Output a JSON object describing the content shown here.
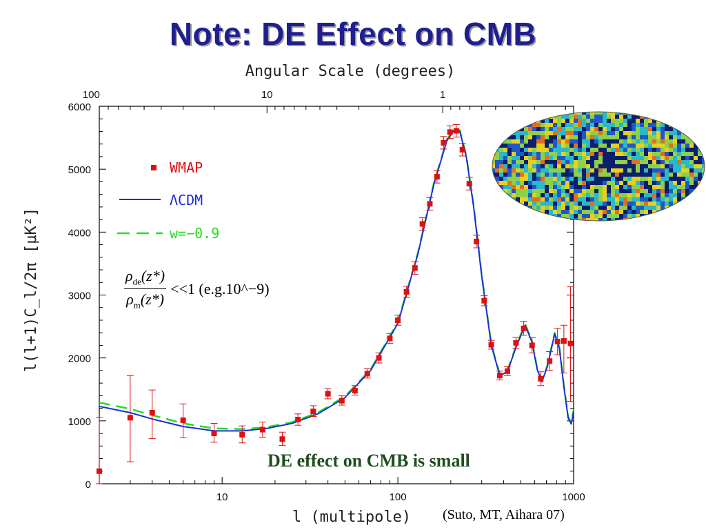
{
  "slide": {
    "title": "Note: DE Effect on CMB",
    "formula": {
      "num_rho": "ρ",
      "num_sub": "de",
      "num_arg": "(z*)",
      "den_rho": "ρ",
      "den_sub": "m",
      "den_arg": "(z*)",
      "relation": "<<1 (e.g.10^−9)"
    },
    "callout": "DE effect on CMB is small",
    "citation": "(Suto, MT, Aihara 07)"
  },
  "chart_data": {
    "type": "scatter",
    "xlabel": "l (multipole)",
    "ylabel": "l(l+1)C_l/2π [μK²]",
    "top_axis_label": "Angular Scale (degrees)",
    "xscale": "log",
    "xlim": [
      2,
      1000
    ],
    "ylim": [
      0,
      6000
    ],
    "x_ticks": [
      "10",
      "100",
      "1000"
    ],
    "y_ticks": [
      "0",
      "1000",
      "2000",
      "3000",
      "4000",
      "5000",
      "6000"
    ],
    "top_ticks": [
      "100",
      "10",
      "1"
    ],
    "legend": {
      "placement": "upper-left",
      "entries": [
        "WMAP",
        "ΛCDM",
        "w=−0.9"
      ]
    },
    "colors": {
      "wmap": "#dd1111",
      "lcdm": "#1a2fd6",
      "w09": "#22dd22",
      "frame": "#000000"
    },
    "series": [
      {
        "name": "WMAP",
        "points": [
          {
            "l": 2,
            "v": 200,
            "lo": 0,
            "hi": 1050
          },
          {
            "l": 3,
            "v": 1050,
            "lo": 350,
            "hi": 1720
          },
          {
            "l": 4,
            "v": 1130,
            "lo": 720,
            "hi": 1490
          },
          {
            "l": 6,
            "v": 1010,
            "lo": 730,
            "hi": 1270
          },
          {
            "l": 9,
            "v": 800,
            "lo": 660,
            "hi": 960
          },
          {
            "l": 13,
            "v": 780,
            "lo": 650,
            "hi": 920
          },
          {
            "l": 17,
            "v": 860,
            "lo": 740,
            "hi": 980
          },
          {
            "l": 22,
            "v": 710,
            "lo": 610,
            "hi": 820
          },
          {
            "l": 27,
            "v": 1020,
            "lo": 930,
            "hi": 1110
          },
          {
            "l": 33,
            "v": 1150,
            "lo": 1070,
            "hi": 1240
          },
          {
            "l": 40,
            "v": 1430,
            "lo": 1350,
            "hi": 1510
          },
          {
            "l": 48,
            "v": 1320,
            "lo": 1250,
            "hi": 1400
          },
          {
            "l": 57,
            "v": 1480,
            "lo": 1410,
            "hi": 1560
          },
          {
            "l": 67,
            "v": 1750,
            "lo": 1680,
            "hi": 1830
          },
          {
            "l": 78,
            "v": 2000,
            "lo": 1920,
            "hi": 2080
          },
          {
            "l": 90,
            "v": 2310,
            "lo": 2230,
            "hi": 2390
          },
          {
            "l": 100,
            "v": 2600,
            "lo": 2520,
            "hi": 2680
          },
          {
            "l": 112,
            "v": 3050,
            "lo": 2960,
            "hi": 3140
          },
          {
            "l": 125,
            "v": 3430,
            "lo": 3330,
            "hi": 3530
          },
          {
            "l": 138,
            "v": 4130,
            "lo": 4030,
            "hi": 4230
          },
          {
            "l": 152,
            "v": 4450,
            "lo": 4350,
            "hi": 4550
          },
          {
            "l": 167,
            "v": 4880,
            "lo": 4780,
            "hi": 4980
          },
          {
            "l": 182,
            "v": 5420,
            "lo": 5320,
            "hi": 5520
          },
          {
            "l": 198,
            "v": 5590,
            "lo": 5490,
            "hi": 5690
          },
          {
            "l": 215,
            "v": 5610,
            "lo": 5510,
            "hi": 5710
          },
          {
            "l": 233,
            "v": 5310,
            "lo": 5210,
            "hi": 5410
          },
          {
            "l": 255,
            "v": 4770,
            "lo": 4670,
            "hi": 4870
          },
          {
            "l": 280,
            "v": 3850,
            "lo": 3750,
            "hi": 3950
          },
          {
            "l": 310,
            "v": 2910,
            "lo": 2830,
            "hi": 2990
          },
          {
            "l": 340,
            "v": 2210,
            "lo": 2140,
            "hi": 2280
          },
          {
            "l": 380,
            "v": 1720,
            "lo": 1650,
            "hi": 1790
          },
          {
            "l": 420,
            "v": 1790,
            "lo": 1720,
            "hi": 1860
          },
          {
            "l": 470,
            "v": 2240,
            "lo": 2150,
            "hi": 2330
          },
          {
            "l": 520,
            "v": 2470,
            "lo": 2360,
            "hi": 2580
          },
          {
            "l": 580,
            "v": 2200,
            "lo": 2080,
            "hi": 2320
          },
          {
            "l": 650,
            "v": 1670,
            "lo": 1560,
            "hi": 1780
          },
          {
            "l": 730,
            "v": 1950,
            "lo": 1800,
            "hi": 2100
          },
          {
            "l": 810,
            "v": 2260,
            "lo": 2050,
            "hi": 2470
          },
          {
            "l": 880,
            "v": 2270,
            "lo": 1760,
            "hi": 2520
          },
          {
            "l": 960,
            "v": 2230,
            "lo": 1310,
            "hi": 3130
          }
        ]
      },
      {
        "name": "ΛCDM",
        "curve": [
          [
            2,
            1230
          ],
          [
            3,
            1130
          ],
          [
            4,
            1030
          ],
          [
            6,
            910
          ],
          [
            9,
            840
          ],
          [
            13,
            840
          ],
          [
            18,
            880
          ],
          [
            25,
            960
          ],
          [
            35,
            1110
          ],
          [
            50,
            1370
          ],
          [
            70,
            1800
          ],
          [
            100,
            2550
          ],
          [
            130,
            3650
          ],
          [
            160,
            4750
          ],
          [
            190,
            5450
          ],
          [
            210,
            5630
          ],
          [
            225,
            5600
          ],
          [
            245,
            5200
          ],
          [
            270,
            4400
          ],
          [
            300,
            3300
          ],
          [
            340,
            2200
          ],
          [
            380,
            1720
          ],
          [
            420,
            1780
          ],
          [
            470,
            2170
          ],
          [
            530,
            2520
          ],
          [
            580,
            2250
          ],
          [
            620,
            1820
          ],
          [
            660,
            1620
          ],
          [
            710,
            1870
          ],
          [
            780,
            2380
          ],
          [
            830,
            2150
          ],
          [
            880,
            1550
          ],
          [
            930,
            1050
          ],
          [
            970,
            950
          ],
          [
            1000,
            1150
          ]
        ]
      },
      {
        "name": "w=−0.9",
        "curve": [
          [
            2,
            1290
          ],
          [
            3,
            1190
          ],
          [
            4,
            1090
          ],
          [
            6,
            960
          ],
          [
            9,
            880
          ],
          [
            13,
            870
          ],
          [
            18,
            900
          ],
          [
            25,
            980
          ],
          [
            35,
            1130
          ],
          [
            50,
            1390
          ],
          [
            70,
            1820
          ],
          [
            100,
            2570
          ],
          [
            130,
            3670
          ],
          [
            160,
            4770
          ],
          [
            190,
            5470
          ],
          [
            210,
            5650
          ],
          [
            225,
            5620
          ],
          [
            245,
            5220
          ],
          [
            270,
            4420
          ],
          [
            300,
            3320
          ],
          [
            340,
            2220
          ],
          [
            380,
            1740
          ],
          [
            420,
            1800
          ],
          [
            470,
            2190
          ],
          [
            530,
            2540
          ],
          [
            580,
            2270
          ],
          [
            620,
            1840
          ],
          [
            660,
            1640
          ],
          [
            710,
            1890
          ],
          [
            780,
            2400
          ],
          [
            830,
            2170
          ],
          [
            880,
            1570
          ],
          [
            930,
            1070
          ],
          [
            970,
            970
          ],
          [
            1000,
            1170
          ]
        ]
      }
    ]
  },
  "cmb_map": {
    "colors": [
      "#0b1f6e",
      "#1f58c8",
      "#2bb8c8",
      "#8fd04a",
      "#e8d020",
      "#e07020"
    ]
  }
}
